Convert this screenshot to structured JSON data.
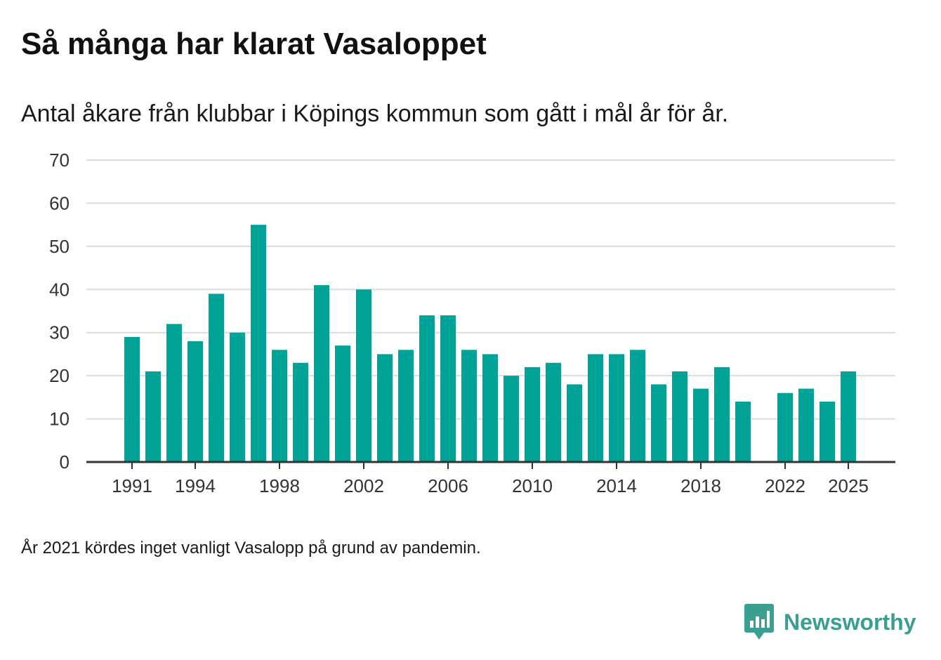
{
  "title": "Så många har klarat Vasaloppet",
  "subtitle": "Antal åkare från klubbar i Köpings kommun som gått i mål år för år.",
  "note": "År 2021 kördes inget vanligt Vasalopp på grund av pandemin.",
  "brand": {
    "name": "Newsworthy",
    "color": "#3a9e91"
  },
  "chart_data": {
    "type": "bar",
    "color": "#00a397",
    "ylim": [
      0,
      70
    ],
    "yticks": [
      0,
      10,
      20,
      30,
      40,
      50,
      60,
      70
    ],
    "xticks": [
      1991,
      1994,
      1998,
      2002,
      2006,
      2010,
      2014,
      2018,
      2022,
      2025
    ],
    "x": [
      1991,
      1992,
      1993,
      1994,
      1995,
      1996,
      1997,
      1998,
      1999,
      2000,
      2001,
      2002,
      2003,
      2004,
      2005,
      2006,
      2007,
      2008,
      2009,
      2010,
      2011,
      2012,
      2013,
      2014,
      2015,
      2016,
      2017,
      2018,
      2019,
      2020,
      2021,
      2022,
      2023,
      2024,
      2025
    ],
    "values": [
      29,
      21,
      32,
      28,
      39,
      30,
      55,
      26,
      23,
      41,
      27,
      40,
      25,
      26,
      34,
      34,
      26,
      25,
      20,
      22,
      23,
      18,
      25,
      25,
      26,
      18,
      21,
      17,
      22,
      14,
      null,
      16,
      17,
      14,
      21
    ],
    "xlabel": "",
    "ylabel": ""
  }
}
